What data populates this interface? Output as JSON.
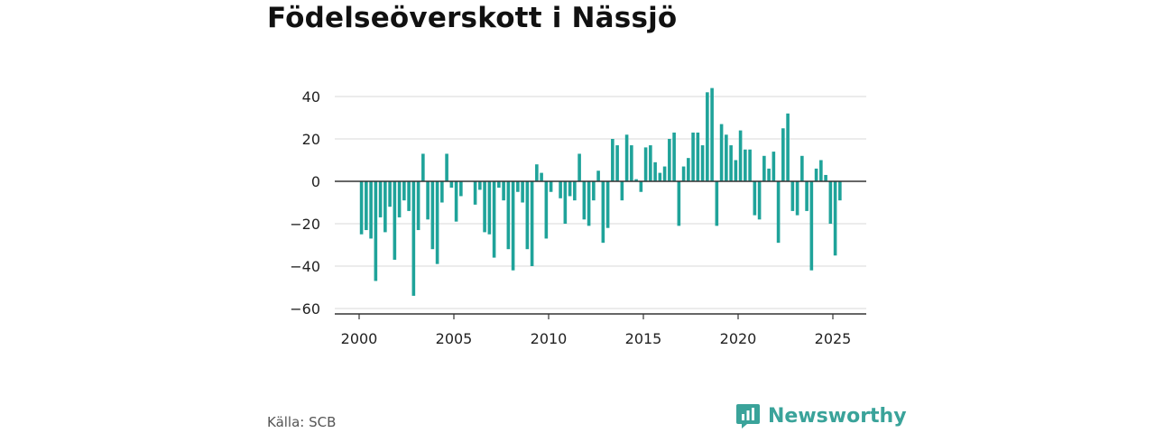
{
  "title": "Födelseöverskott i Nässjö",
  "source": "Källa: SCB",
  "brand": {
    "name": "Newsworthy",
    "icon": "bar-chart-speech-bubble-icon",
    "color": "#3aa39a"
  },
  "chart_data": {
    "type": "bar",
    "title": "Födelseöverskott i Nässjö",
    "xlabel": "",
    "ylabel": "",
    "ylim": [
      -62,
      50
    ],
    "yticks": [
      40,
      20,
      0,
      -20,
      -40,
      -60
    ],
    "ytick_labels": [
      "40",
      "20",
      "0",
      "−20",
      "−40",
      "−60"
    ],
    "xticks": [
      2000,
      2005,
      2010,
      2015,
      2020,
      2025
    ],
    "xtick_labels": [
      "2000",
      "2005",
      "2010",
      "2015",
      "2020",
      "2025"
    ],
    "bar_color": "#1fa39a",
    "grid": true,
    "x_start": 2000.0,
    "x_step": 0.25,
    "values": [
      -25,
      -23,
      -27,
      -47,
      -17,
      -24,
      -12,
      -37,
      -17,
      -9,
      -14,
      -54,
      -23,
      13,
      -18,
      -32,
      -39,
      -10,
      13,
      -3,
      -19,
      -7,
      0,
      0,
      -11,
      -4,
      -24,
      -25,
      -36,
      -3,
      -9,
      -32,
      -42,
      -5,
      -10,
      -32,
      -40,
      8,
      4,
      -27,
      -5,
      0,
      -8,
      -20,
      -7,
      -9,
      13,
      -18,
      -21,
      -9,
      5,
      -29,
      -22,
      20,
      17,
      -9,
      22,
      17,
      1,
      -5,
      16,
      17,
      9,
      4,
      7,
      20,
      23,
      -21,
      7,
      11,
      23,
      23,
      17,
      42,
      44,
      -21,
      27,
      22,
      17,
      10,
      24,
      15,
      15,
      -16,
      -18,
      12,
      6,
      14,
      -29,
      25,
      32,
      -14,
      -16,
      12,
      -14,
      -42,
      6,
      10,
      3,
      -20,
      -35,
      -9
    ]
  }
}
